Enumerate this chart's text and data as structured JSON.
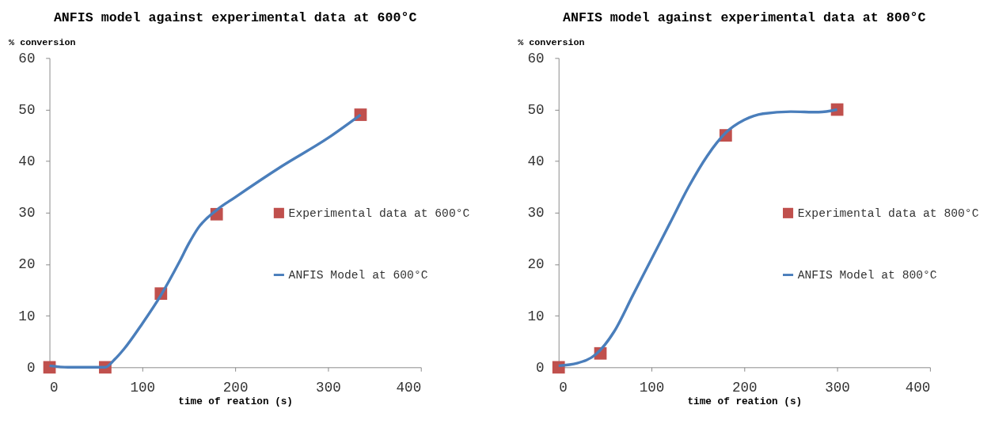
{
  "chart_data": [
    {
      "type": "scatter",
      "title": "ANFIS model against experimental data at 600°C",
      "xlabel": "time of reation (s)",
      "ylabel": "% conversion",
      "xlim": [
        0,
        400
      ],
      "xticks": [
        0,
        100,
        200,
        300,
        400
      ],
      "ylim": [
        0,
        60
      ],
      "yticks": [
        0,
        10,
        20,
        30,
        40,
        50,
        60
      ],
      "grid": false,
      "legend": "right",
      "series": [
        {
          "name": "Experimental data at 600°C",
          "marker": "square",
          "color": "#c0504d",
          "x": [
            0,
            60,
            120,
            180,
            335
          ],
          "values": [
            0,
            0,
            14.3,
            29.7,
            49
          ]
        },
        {
          "name": "ANFIS Model at 600°C",
          "type": "line",
          "marker": "none",
          "line_style": "solid",
          "color": "#4a7ebb",
          "x": [
            0,
            20,
            40,
            60,
            70,
            80,
            100,
            120,
            140,
            150,
            160,
            180,
            200,
            250,
            300,
            335
          ],
          "values": [
            0.3,
            0,
            0,
            0,
            1.5,
            3.5,
            8.5,
            14,
            20.5,
            24,
            27,
            30.5,
            33,
            39,
            44.5,
            49
          ]
        }
      ]
    },
    {
      "type": "scatter",
      "title": "ANFIS model against experimental data at 800°C",
      "xlabel": "time of reation (s)",
      "ylabel": "% conversion",
      "xlim": [
        0,
        400
      ],
      "xticks": [
        0,
        100,
        200,
        300,
        400
      ],
      "ylim": [
        0,
        60
      ],
      "yticks": [
        0,
        10,
        20,
        30,
        40,
        50,
        60
      ],
      "grid": false,
      "legend": "right",
      "series": [
        {
          "name": "Experimental data at 800°C",
          "marker": "square",
          "color": "#c0504d",
          "x": [
            0,
            45,
            180,
            300
          ],
          "values": [
            0,
            2.7,
            45,
            50
          ]
        },
        {
          "name": "ANFIS Model at 800°C",
          "type": "line",
          "marker": "none",
          "line_style": "solid",
          "color": "#4a7ebb",
          "x": [
            0,
            20,
            40,
            60,
            80,
            100,
            120,
            140,
            160,
            180,
            200,
            220,
            250,
            280,
            300
          ],
          "values": [
            0.3,
            0.8,
            2.5,
            7,
            14,
            21,
            28,
            35,
            41,
            45.5,
            48,
            49.2,
            49.6,
            49.5,
            50
          ]
        }
      ]
    }
  ]
}
